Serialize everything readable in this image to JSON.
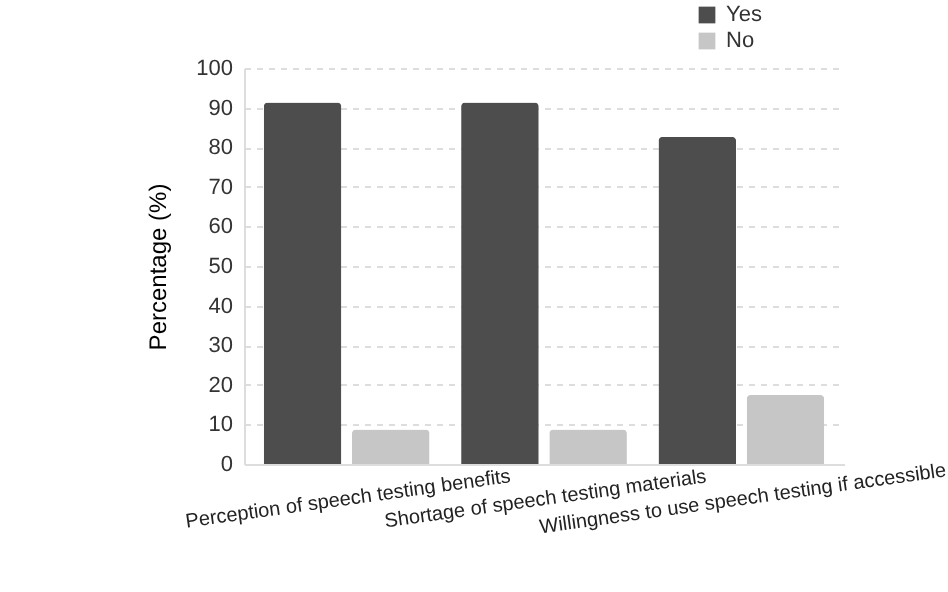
{
  "chart_data": {
    "type": "bar",
    "ylabel": "Percentage (%)",
    "categories": [
      "Perception of speech testing benefits",
      "Shortage of speech testing materials",
      "Willingness to use speech testing if accessible"
    ],
    "series": [
      {
        "name": "Yes",
        "color": "#4d4d4d",
        "values": [
          91.3,
          91.3,
          82.6
        ]
      },
      {
        "name": "No",
        "color": "#c6c6c6",
        "values": [
          8.7,
          8.7,
          17.4
        ]
      }
    ],
    "ylim": [
      0,
      100
    ],
    "yticks": [
      0,
      10,
      20,
      30,
      40,
      50,
      60,
      70,
      80,
      90,
      100
    ],
    "grid": "y",
    "legend": "top right"
  }
}
